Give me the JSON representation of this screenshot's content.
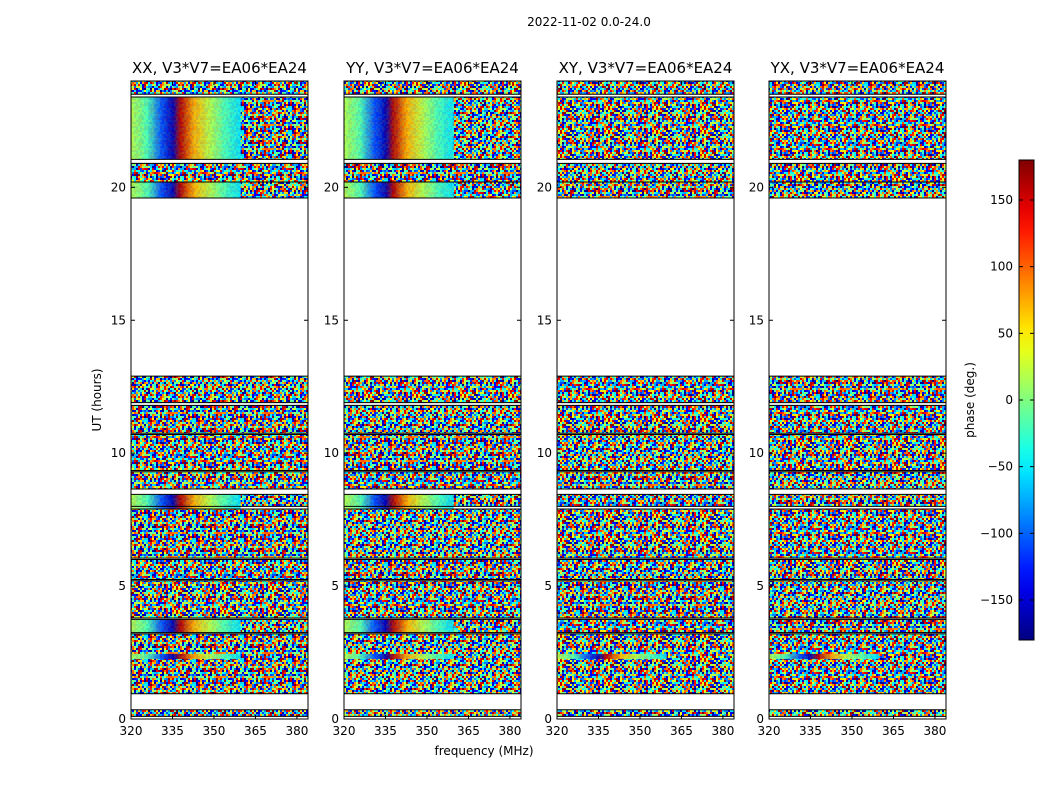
{
  "chart_data": {
    "type": "heatmap",
    "suptitle": "2022-11-02 0.0-24.0",
    "xlabel": "frequency (MHz)",
    "ylabel": "UT (hours)",
    "xlim": [
      320,
      384
    ],
    "ylim": [
      0,
      24
    ],
    "x_ticks": [
      320,
      335,
      350,
      365,
      380
    ],
    "y_ticks": [
      0,
      5,
      10,
      15,
      20
    ],
    "panels": [
      {
        "title": "XX, V3*V7=EA06*EA24",
        "product": "XX"
      },
      {
        "title": "YY, V3*V7=EA06*EA24",
        "product": "YY"
      },
      {
        "title": "XY, V3*V7=EA06*EA24",
        "product": "XY"
      },
      {
        "title": "YX, V3*V7=EA06*EA24",
        "product": "YX"
      }
    ],
    "colorbar": {
      "label": "phase (deg.)",
      "range": [
        -180,
        180
      ],
      "ticks": [
        150,
        100,
        50,
        0,
        -50,
        -100,
        -150
      ],
      "tick_labels": [
        "150",
        "100",
        "50",
        "0",
        "−50",
        "−100",
        "−150"
      ],
      "colormap": "jet"
    },
    "data_blocks_ut_hours": [
      [
        0.1,
        0.35
      ],
      [
        0.95,
        3.2
      ],
      [
        3.25,
        3.75
      ],
      [
        3.8,
        5.2
      ],
      [
        5.25,
        6.0
      ],
      [
        6.05,
        7.9
      ],
      [
        8.0,
        8.45
      ],
      [
        8.65,
        9.3
      ],
      [
        9.35,
        10.7
      ],
      [
        10.75,
        11.8
      ],
      [
        11.9,
        12.9
      ],
      [
        19.6,
        20.2
      ],
      [
        20.2,
        20.9
      ],
      [
        21.05,
        23.4
      ],
      [
        23.5,
        24.0
      ]
    ],
    "coherent_bands": [
      {
        "panels": [
          "XX",
          "YY"
        ],
        "ut": [
          3.25,
          3.75
        ],
        "gradient": "phase wraps across frequency"
      },
      {
        "panels": [
          "XX",
          "YY"
        ],
        "ut": [
          7.9,
          8.45
        ],
        "gradient": "phase wraps across frequency"
      },
      {
        "panels": [
          "XX",
          "YY"
        ],
        "ut": [
          19.6,
          20.2
        ],
        "gradient": "phase wraps across frequency"
      },
      {
        "panels": [
          "XX",
          "YY"
        ],
        "ut": [
          21.05,
          23.4
        ],
        "gradient": "phase wraps across frequency"
      },
      {
        "panels": [
          "XX",
          "YY",
          "XY",
          "YX"
        ],
        "ut": [
          2.25,
          2.45
        ],
        "gradient": "fringe pattern"
      }
    ]
  }
}
